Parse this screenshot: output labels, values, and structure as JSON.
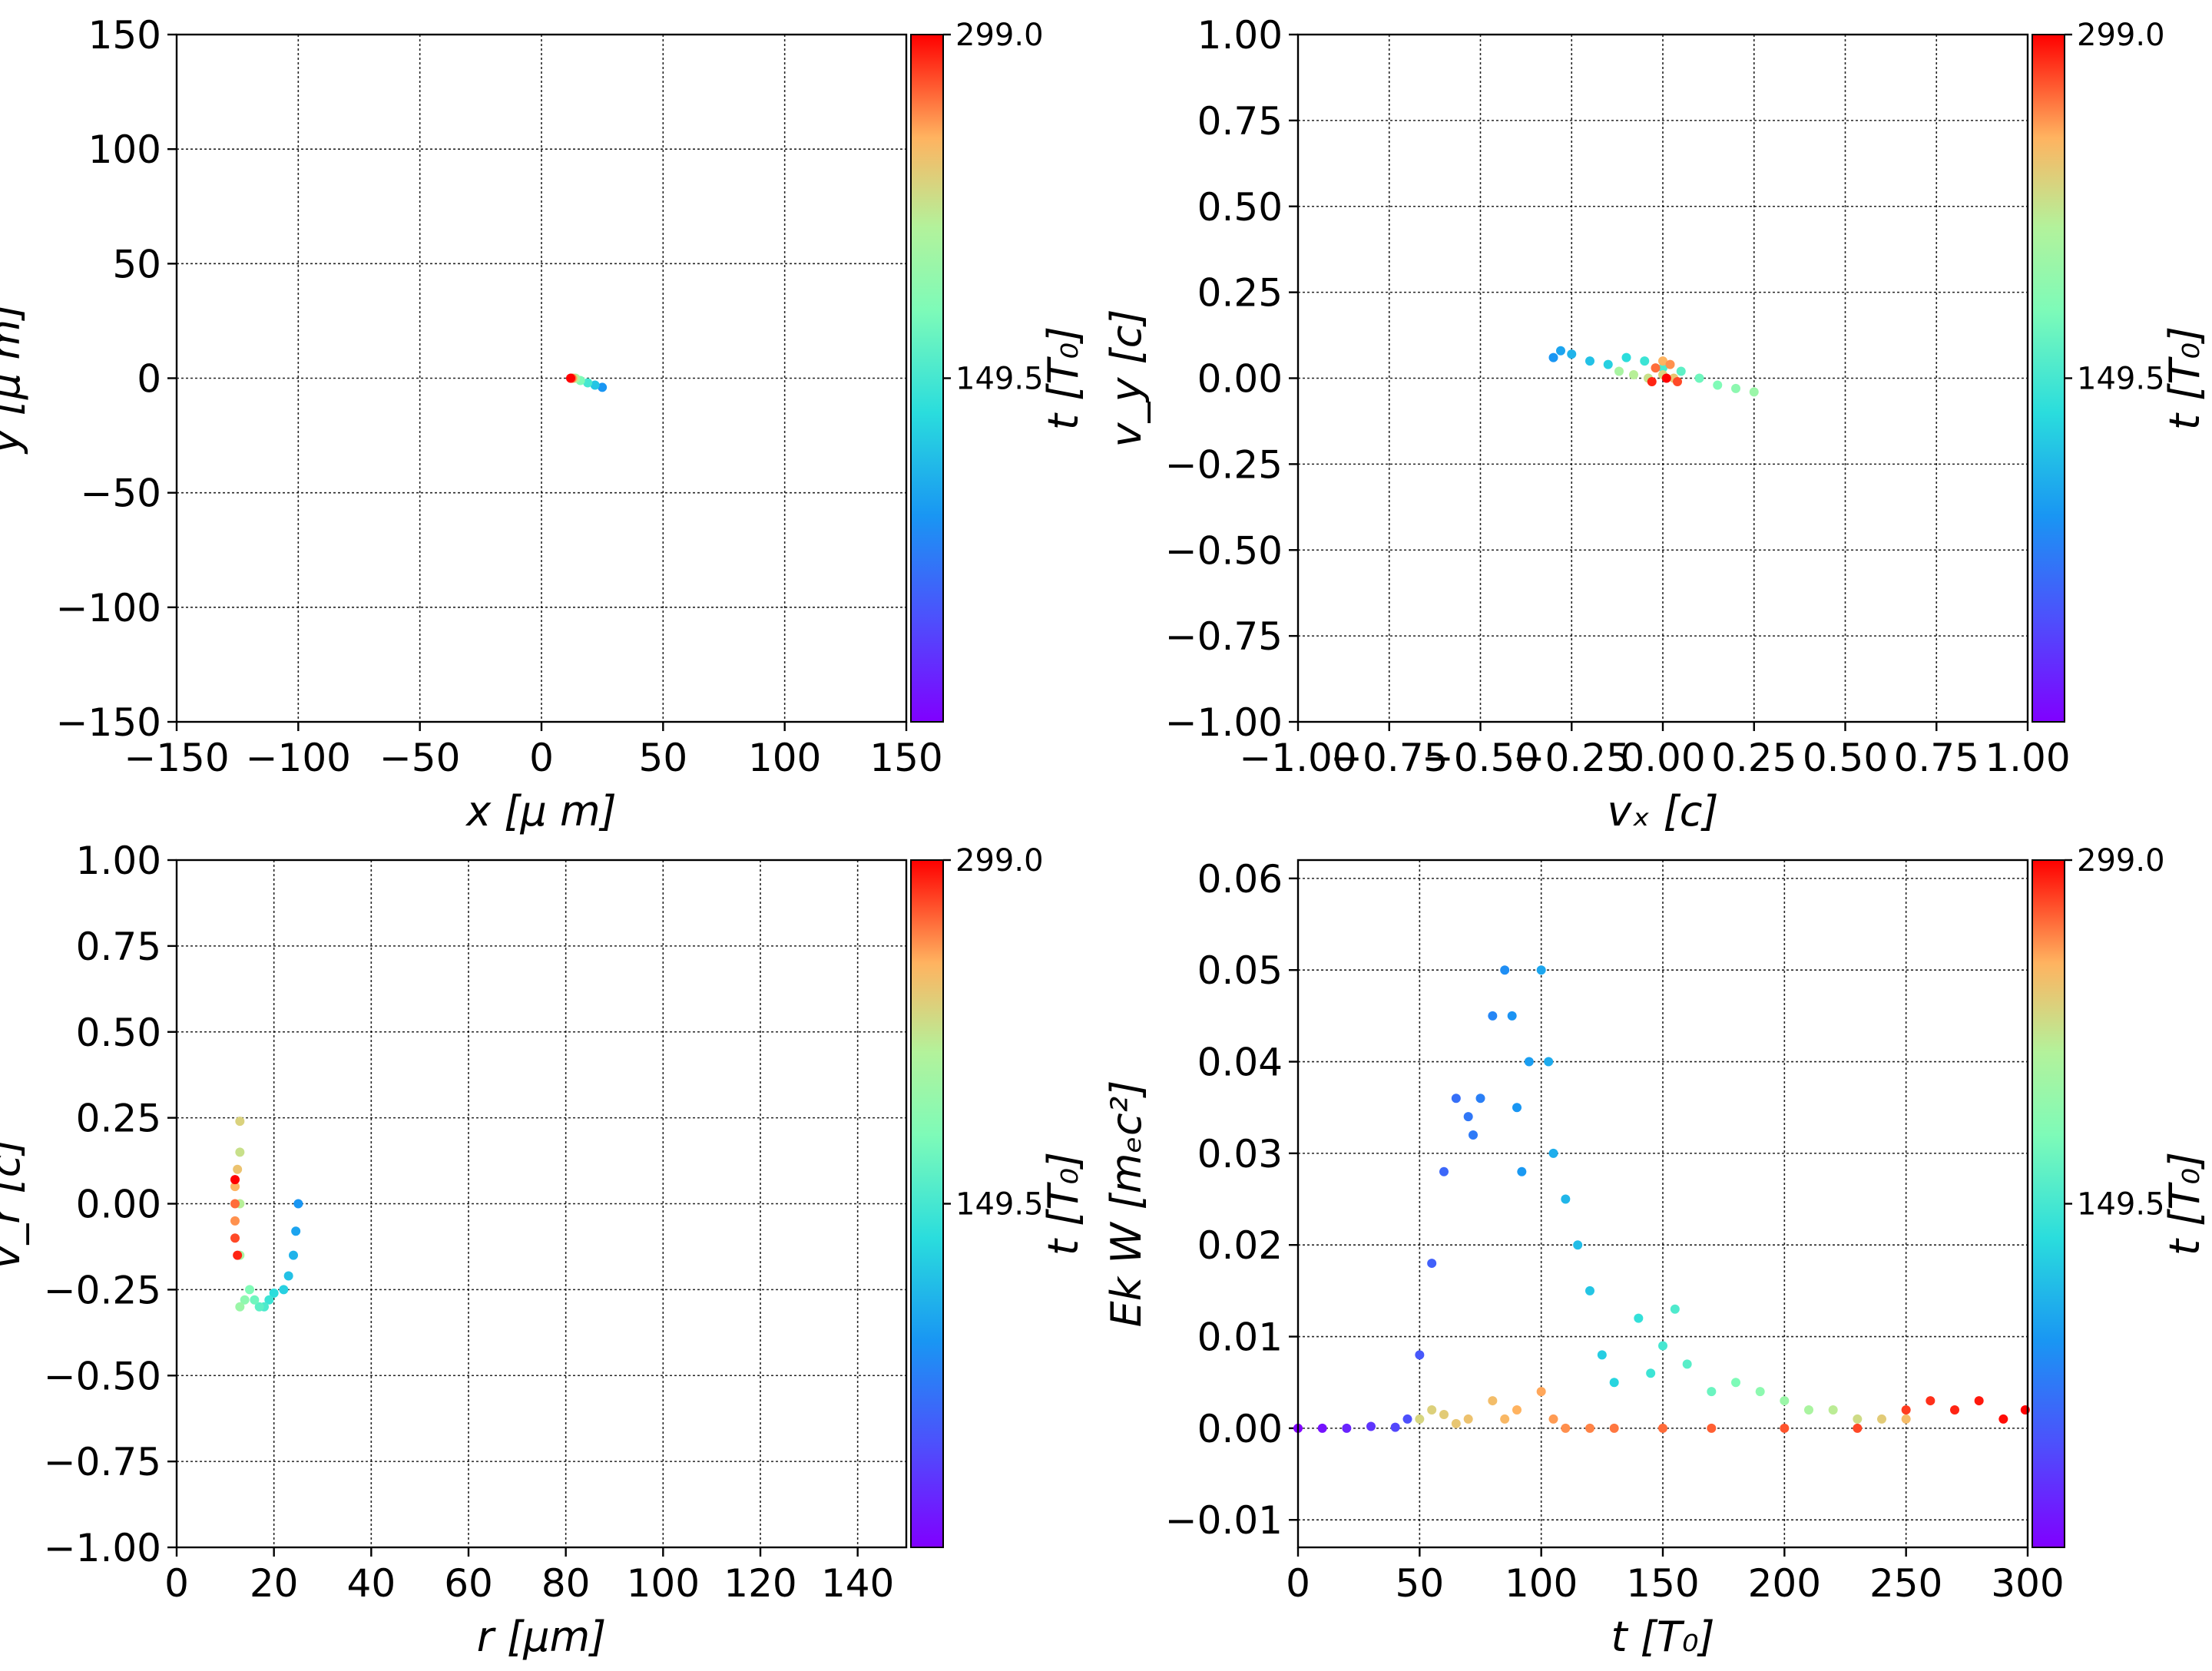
{
  "chart_data": [
    {
      "id": "xy",
      "type": "scatter",
      "xlabel": "x  [μ m]",
      "ylabel": "y  [μ m]",
      "xlim": [
        -150,
        150
      ],
      "ylim": [
        -150,
        150
      ],
      "xticks": [
        "−150",
        "−100",
        "−50",
        "0",
        "50",
        "100",
        "150"
      ],
      "yticks": [
        "−150",
        "−100",
        "−50",
        "0",
        "50",
        "100",
        "150"
      ],
      "grid": true,
      "colorbar": {
        "label": "t [T₀]",
        "range": [
          0,
          299.0
        ],
        "ticks": [
          "149.5",
          "299.0"
        ],
        "colormap": "rainbow"
      },
      "series": [
        {
          "points": [
            [
              25,
              -4
            ],
            [
              22,
              -3
            ],
            [
              19,
              -2
            ],
            [
              16,
              -1
            ],
            [
              14,
              0
            ],
            [
              13,
              0
            ],
            [
              12.5,
              0
            ],
            [
              12,
              0
            ]
          ]
        }
      ]
    },
    {
      "id": "vxvy",
      "type": "scatter",
      "xlabel": "vₓ [c]",
      "ylabel": "v_y [c]",
      "xlim": [
        -1.0,
        1.0
      ],
      "ylim": [
        -1.0,
        1.0
      ],
      "xticks": [
        "−1.00",
        "−0.75",
        "−0.50",
        "−0.25",
        "0.00",
        "0.25",
        "0.50",
        "0.75",
        "1.00"
      ],
      "yticks": [
        "−1.00",
        "−0.75",
        "−0.50",
        "−0.25",
        "0.00",
        "0.25",
        "0.50",
        "0.75",
        "1.00"
      ],
      "grid": true,
      "colorbar": {
        "label": "t [T₀]",
        "range": [
          0,
          299.0
        ],
        "ticks": [
          "149.5",
          "299.0"
        ],
        "colormap": "rainbow"
      },
      "series": [
        {
          "points": [
            [
              -0.3,
              0.06
            ],
            [
              -0.28,
              0.08
            ],
            [
              -0.25,
              0.07
            ],
            [
              -0.2,
              0.05
            ],
            [
              -0.15,
              0.04
            ],
            [
              -0.1,
              0.06
            ],
            [
              -0.05,
              0.05
            ],
            [
              0.0,
              0.03
            ],
            [
              0.05,
              0.02
            ],
            [
              0.1,
              0.0
            ],
            [
              0.15,
              -0.02
            ],
            [
              0.2,
              -0.03
            ],
            [
              0.25,
              -0.04
            ],
            [
              -0.12,
              0.02
            ],
            [
              -0.08,
              0.01
            ],
            [
              -0.04,
              0.0
            ],
            [
              0.0,
              0.01
            ],
            [
              0.03,
              0.0
            ],
            [
              0.0,
              0.05
            ],
            [
              0.02,
              0.04
            ],
            [
              -0.02,
              0.03
            ],
            [
              0.04,
              -0.01
            ],
            [
              -0.03,
              -0.01
            ],
            [
              0.01,
              0.0
            ]
          ]
        }
      ]
    },
    {
      "id": "rvr",
      "type": "scatter",
      "xlabel": "r [μm]",
      "ylabel": "v_r [c]",
      "xlim": [
        0,
        150
      ],
      "ylim": [
        -1.0,
        1.0
      ],
      "xticks": [
        "0",
        "20",
        "40",
        "60",
        "80",
        "100",
        "120",
        "140"
      ],
      "yticks": [
        "−1.00",
        "−0.75",
        "−0.50",
        "−0.25",
        "0.00",
        "0.25",
        "0.50",
        "0.75",
        "1.00"
      ],
      "grid": true,
      "colorbar": {
        "label": "t [T₀]",
        "range": [
          0,
          299.0
        ],
        "ticks": [
          "149.5",
          "299.0"
        ],
        "colormap": "rainbow"
      },
      "series": [
        {
          "points": [
            [
              25,
              0.0
            ],
            [
              24.5,
              -0.08
            ],
            [
              24,
              -0.15
            ],
            [
              23,
              -0.21
            ],
            [
              22,
              -0.25
            ],
            [
              20,
              -0.26
            ],
            [
              19,
              -0.28
            ],
            [
              18,
              -0.3
            ],
            [
              17,
              -0.3
            ],
            [
              16,
              -0.28
            ],
            [
              15,
              -0.25
            ],
            [
              14,
              -0.28
            ],
            [
              13,
              -0.3
            ],
            [
              13,
              -0.15
            ],
            [
              13,
              0.0
            ],
            [
              13,
              0.15
            ],
            [
              13,
              0.24
            ],
            [
              12.5,
              0.1
            ],
            [
              12,
              0.05
            ],
            [
              12,
              -0.05
            ],
            [
              12,
              0.0
            ],
            [
              12,
              -0.1
            ],
            [
              12.5,
              -0.15
            ],
            [
              12,
              0.07
            ]
          ]
        }
      ]
    },
    {
      "id": "ekt",
      "type": "scatter",
      "xlabel": "t [T₀]",
      "ylabel": "Ek W [mₑc²]",
      "xlim": [
        0,
        300
      ],
      "ylim": [
        -0.013,
        0.062
      ],
      "xticks": [
        "0",
        "50",
        "100",
        "150",
        "200",
        "250",
        "300"
      ],
      "yticks": [
        "−0.01",
        "0.00",
        "0.01",
        "0.02",
        "0.03",
        "0.04",
        "0.05",
        "0.06"
      ],
      "grid": true,
      "colorbar": {
        "label": "t [T₀]",
        "range": [
          0,
          299.0
        ],
        "ticks": [
          "149.5",
          "299.0"
        ],
        "colormap": "rainbow"
      },
      "series": [
        {
          "name": "",
          "points": [
            [
              0,
              0
            ],
            [
              10,
              0
            ],
            [
              20,
              0
            ],
            [
              30,
              0.0002
            ],
            [
              40,
              0.0001
            ],
            [
              45,
              0.001
            ],
            [
              50,
              0.008
            ],
            [
              55,
              0.018
            ],
            [
              60,
              0.028
            ],
            [
              65,
              0.036
            ],
            [
              70,
              0.034
            ],
            [
              72,
              0.032
            ],
            [
              75,
              0.036
            ],
            [
              80,
              0.045
            ],
            [
              85,
              0.05
            ],
            [
              88,
              0.045
            ],
            [
              90,
              0.035
            ],
            [
              92,
              0.028
            ],
            [
              95,
              0.04
            ],
            [
              100,
              0.05
            ],
            [
              103,
              0.04
            ],
            [
              105,
              0.03
            ],
            [
              110,
              0.025
            ],
            [
              115,
              0.02
            ],
            [
              120,
              0.015
            ],
            [
              125,
              0.008
            ],
            [
              130,
              0.005
            ],
            [
              140,
              0.012
            ],
            [
              145,
              0.006
            ],
            [
              150,
              0.009
            ],
            [
              155,
              0.013
            ],
            [
              160,
              0.007
            ],
            [
              170,
              0.004
            ],
            [
              180,
              0.005
            ],
            [
              190,
              0.004
            ],
            [
              200,
              0.003
            ],
            [
              210,
              0.002
            ],
            [
              220,
              0.002
            ],
            [
              230,
              0.001
            ],
            [
              240,
              0.001
            ],
            [
              250,
              0.001
            ]
          ]
        },
        {
          "name": "",
          "points": [
            [
              50,
              0.001
            ],
            [
              55,
              0.002
            ],
            [
              60,
              0.0015
            ],
            [
              65,
              0.0005
            ],
            [
              70,
              0.001
            ],
            [
              80,
              0.003
            ],
            [
              85,
              0.001
            ],
            [
              90,
              0.002
            ],
            [
              100,
              0.004
            ],
            [
              105,
              0.001
            ],
            [
              110,
              0.0
            ],
            [
              120,
              0.0
            ],
            [
              130,
              0.0
            ],
            [
              150,
              0.0
            ],
            [
              170,
              0.0
            ],
            [
              200,
              0.0
            ],
            [
              230,
              0.0
            ],
            [
              250,
              0.002
            ],
            [
              260,
              0.003
            ],
            [
              270,
              0.002
            ],
            [
              280,
              0.003
            ],
            [
              290,
              0.001
            ],
            [
              299,
              0.002
            ]
          ]
        }
      ]
    }
  ]
}
